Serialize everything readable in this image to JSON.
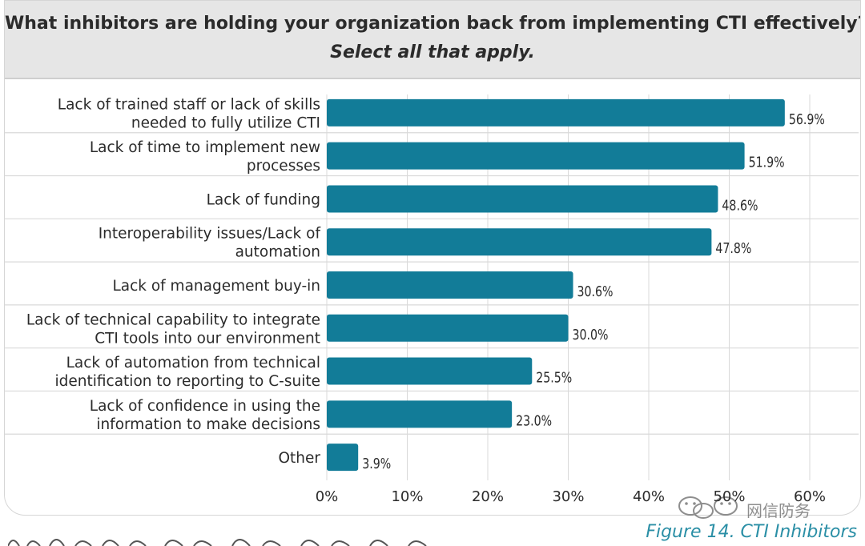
{
  "chart_data": {
    "type": "bar",
    "orientation": "horizontal",
    "title": "What inhibitors are holding your organization back from implementing CTI effectively?",
    "subtitle": "Select all that apply.",
    "categories": [
      [
        "Lack of trained staff or lack of skills",
        "needed to fully utilize CTI"
      ],
      [
        "Lack of time to implement new",
        "processes"
      ],
      [
        "Lack of funding"
      ],
      [
        "Interoperability issues/Lack of",
        "automation"
      ],
      [
        "Lack of management buy-in"
      ],
      [
        "Lack of technical capability to integrate",
        "CTI tools into our environment"
      ],
      [
        "Lack of automation from technical",
        "identification to reporting to C-suite"
      ],
      [
        "Lack of confidence in using the",
        "information to make decisions"
      ],
      [
        "Other"
      ]
    ],
    "values": [
      56.9,
      51.9,
      48.6,
      47.8,
      30.6,
      30.0,
      25.5,
      23.0,
      3.9
    ],
    "value_labels": [
      "56.9%",
      "51.9%",
      "48.6%",
      "47.8%",
      "30.6%",
      "30.0%",
      "25.5%",
      "23.0%",
      "3.9%"
    ],
    "xlim": [
      0,
      60
    ],
    "xticks": [
      0,
      10,
      20,
      30,
      40,
      50,
      60
    ],
    "xtick_labels": [
      "0%",
      "10%",
      "20%",
      "30%",
      "40%",
      "50%",
      "60%"
    ],
    "grid": true,
    "colors": {
      "bar": "#127c98",
      "grid": "#d9d9d9",
      "text": "#2b2b2b"
    }
  },
  "caption": "Figure 14. CTI Inhibitors",
  "watermark": "网信防务",
  "watermark_icon": "wechat-icon"
}
